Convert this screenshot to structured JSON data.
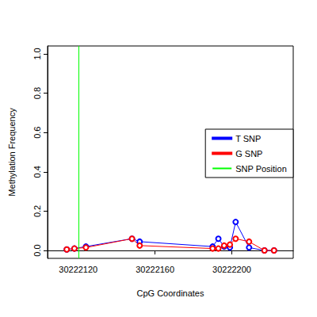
{
  "chart_data": {
    "type": "line",
    "x_label": "CpG Coordinates",
    "y_label": "Methylation Frequency",
    "x": [
      30222114,
      30222118,
      30222124,
      30222148,
      30222152,
      30222190,
      30222193,
      30222196,
      30222199,
      30222202,
      30222209,
      30222217,
      30222222
    ],
    "series": [
      {
        "name": "T SNP",
        "color": "#0000ff",
        "marker": "open_circle",
        "values": [
          0.005,
          0.01,
          0.02,
          0.06,
          0.045,
          0.02,
          0.06,
          0.02,
          0.015,
          0.145,
          0.015,
          0.0,
          0.0
        ]
      },
      {
        "name": "G SNP",
        "color": "#ff0000",
        "marker": "open_circle",
        "values": [
          0.005,
          0.01,
          0.015,
          0.06,
          0.025,
          0.01,
          0.01,
          0.025,
          0.03,
          0.06,
          0.045,
          0.0,
          0.0
        ]
      }
    ],
    "snp_position": {
      "name": "SNP Position",
      "color": "#00ff00",
      "value": 30222120
    },
    "xlim": [
      30222104,
      30222232
    ],
    "xticks": [
      30222120,
      30222160,
      30222200
    ],
    "ylim": [
      -0.04,
      1.04
    ],
    "yticks": [
      {
        "value": 0,
        "label": "0.0"
      },
      {
        "value": 0.2,
        "label": "0.2"
      },
      {
        "value": 0.4,
        "label": "0.4"
      },
      {
        "value": 0.6,
        "label": "0.6"
      },
      {
        "value": 0.8,
        "label": "0.8"
      },
      {
        "value": 1,
        "label": "1.0"
      }
    ],
    "legend": "right",
    "grid": false
  }
}
